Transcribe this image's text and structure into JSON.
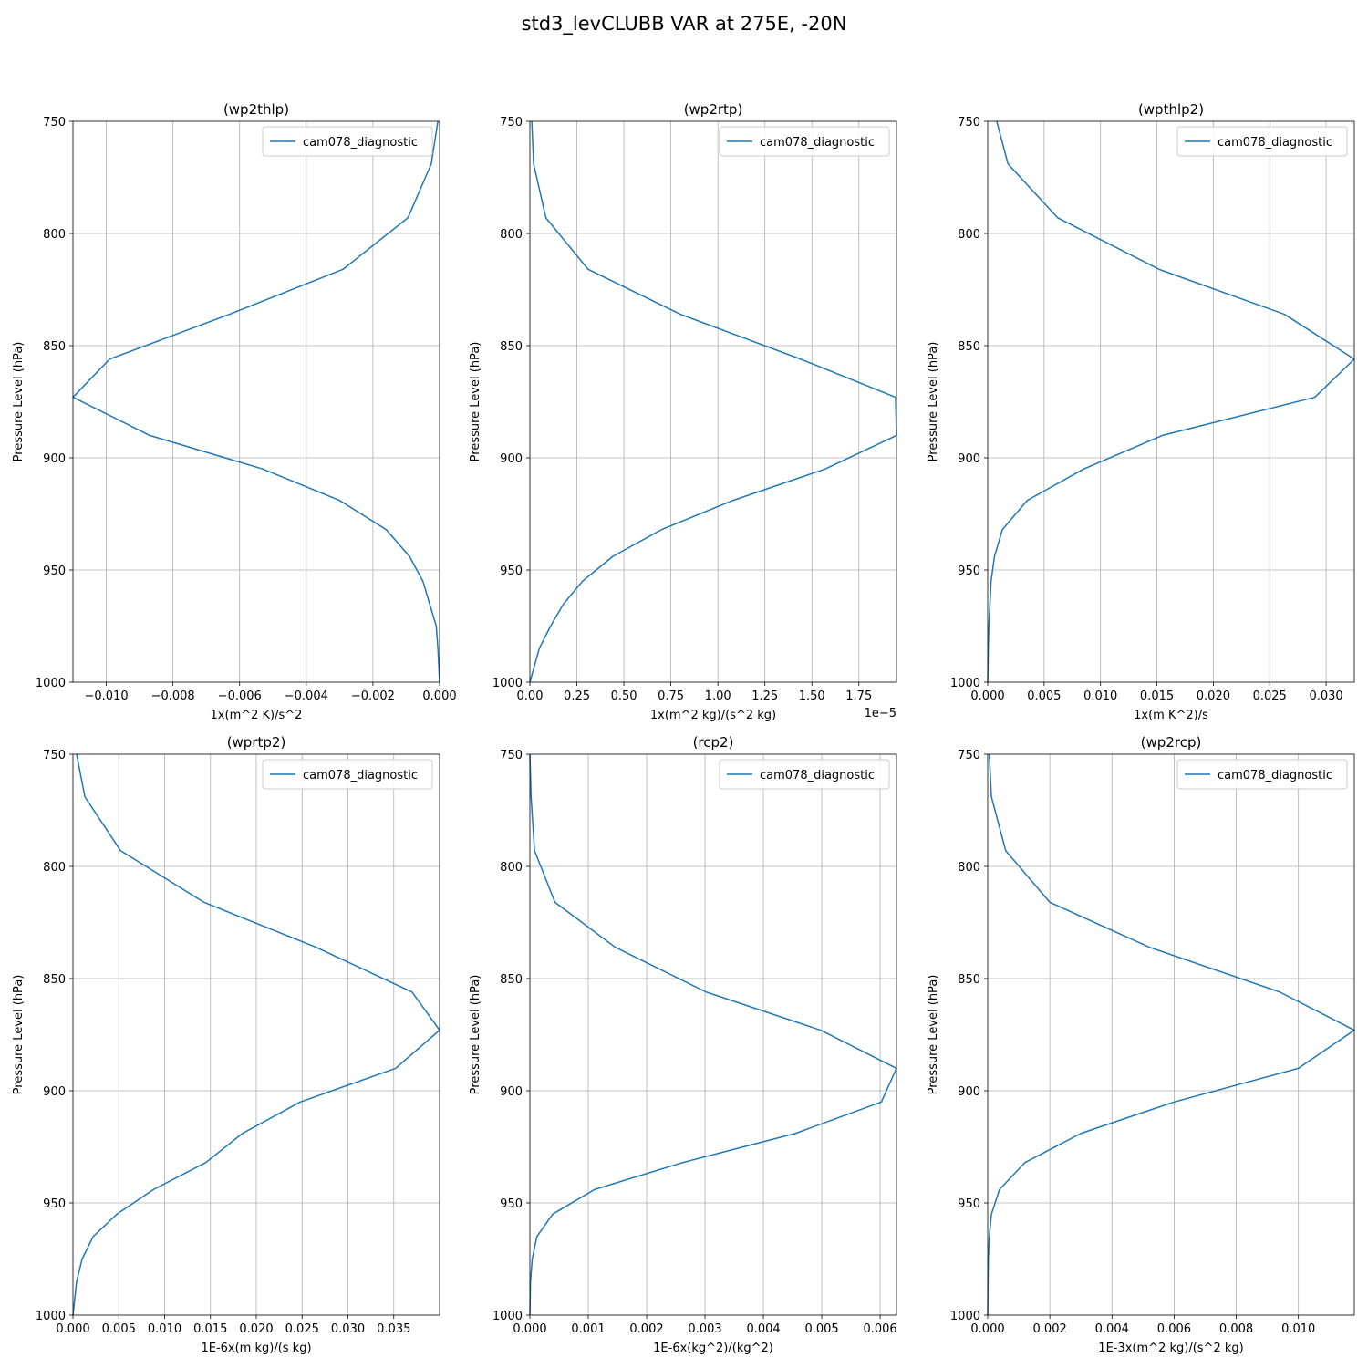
{
  "figure": {
    "title": "std3_levCLUBB VAR at 275E, -20N"
  },
  "chart_data": [
    {
      "type": "line",
      "title": "(wp2thlp)",
      "xlabel": "1x(m^2 K)/s^2",
      "ylabel": "Pressure Level (hPa)",
      "offset_text": "",
      "xlim": [
        -0.011,
        0.0
      ],
      "ylim": [
        1000,
        750
      ],
      "x_ticks": [
        -0.01,
        -0.008,
        -0.006,
        -0.004,
        -0.002,
        0.0
      ],
      "x_tick_labels": [
        "−0.010",
        "−0.008",
        "−0.006",
        "−0.004",
        "−0.002",
        "0.000"
      ],
      "y_ticks": [
        750,
        800,
        850,
        900,
        950,
        1000
      ],
      "y_tick_labels": [
        "750",
        "800",
        "850",
        "900",
        "950",
        "1000"
      ],
      "grid": true,
      "legend_position": "upper-right",
      "series": [
        {
          "name": "cam078_diagnostic",
          "color": "#1f77b4",
          "x": [
            -5e-05,
            -0.00025,
            -0.00095,
            -0.0029,
            -0.0063,
            -0.0099,
            -0.011,
            -0.0087,
            -0.0053,
            -0.003,
            -0.0016,
            -0.0009,
            -0.0005,
            -0.0003,
            -0.0001,
            -5e-05,
            0.0
          ],
          "y": [
            750,
            769,
            793,
            816,
            836,
            856,
            873,
            890,
            905,
            919,
            932,
            944,
            955,
            965,
            975,
            985,
            1000
          ]
        }
      ]
    },
    {
      "type": "line",
      "title": "(wp2rtp)",
      "xlabel": "1x(m^2 kg)/(s^2 kg)",
      "ylabel": "Pressure Level (hPa)",
      "offset_text": "1e−5",
      "xlim": [
        0.0,
        1.95e-05
      ],
      "ylim": [
        1000,
        750
      ],
      "x_ticks": [
        0.0,
        2.5e-06,
        5e-06,
        7.5e-06,
        1e-05,
        1.25e-05,
        1.5e-05,
        1.75e-05
      ],
      "x_tick_labels": [
        "0.00",
        "0.25",
        "0.50",
        "0.75",
        "1.00",
        "1.25",
        "1.50",
        "1.75"
      ],
      "y_ticks": [
        750,
        800,
        850,
        900,
        950,
        1000
      ],
      "y_tick_labels": [
        "750",
        "800",
        "850",
        "900",
        "950",
        "1000"
      ],
      "grid": true,
      "legend_position": "upper-right",
      "series": [
        {
          "name": "cam078_diagnostic",
          "color": "#1f77b4",
          "x": [
            1e-07,
            2e-07,
            8.5e-07,
            3.1e-06,
            8e-06,
            1.44e-05,
            1.945e-05,
            1.95e-05,
            1.57e-05,
            1.08e-05,
            7e-06,
            4.4e-06,
            2.8e-06,
            1.8e-06,
            1.1e-06,
            5e-07,
            0.0
          ],
          "y": [
            750,
            769,
            793,
            816,
            836,
            856,
            873,
            890,
            905,
            919,
            932,
            944,
            955,
            965,
            975,
            985,
            1000
          ]
        }
      ]
    },
    {
      "type": "line",
      "title": "(wpthlp2)",
      "xlabel": "1x(m K^2)/s",
      "ylabel": "Pressure Level (hPa)",
      "offset_text": "",
      "xlim": [
        0.0,
        0.0325
      ],
      "ylim": [
        1000,
        750
      ],
      "x_ticks": [
        0.0,
        0.005,
        0.01,
        0.015,
        0.02,
        0.025,
        0.03
      ],
      "x_tick_labels": [
        "0.000",
        "0.005",
        "0.010",
        "0.015",
        "0.020",
        "0.025",
        "0.030"
      ],
      "y_ticks": [
        750,
        800,
        850,
        900,
        950,
        1000
      ],
      "y_tick_labels": [
        "750",
        "800",
        "850",
        "900",
        "950",
        "1000"
      ],
      "grid": true,
      "legend_position": "upper-right",
      "series": [
        {
          "name": "cam078_diagnostic",
          "color": "#1f77b4",
          "x": [
            0.0008,
            0.0018,
            0.0062,
            0.0152,
            0.0263,
            0.0325,
            0.029,
            0.0155,
            0.0085,
            0.0035,
            0.0013,
            0.0006,
            0.0003,
            0.0002,
            0.0001,
            5e-05,
            0.0
          ],
          "y": [
            750,
            769,
            793,
            816,
            836,
            856,
            873,
            890,
            905,
            919,
            932,
            944,
            955,
            965,
            975,
            985,
            1000
          ]
        }
      ]
    },
    {
      "type": "line",
      "title": "(wprtp2)",
      "xlabel": "1E-6x(m kg)/(s kg)",
      "ylabel": "Pressure Level (hPa)",
      "offset_text": "",
      "xlim": [
        0.0,
        0.04
      ],
      "ylim": [
        1000,
        750
      ],
      "x_ticks": [
        0.0,
        0.005,
        0.01,
        0.015,
        0.02,
        0.025,
        0.03,
        0.035
      ],
      "x_tick_labels": [
        "0.000",
        "0.005",
        "0.010",
        "0.015",
        "0.020",
        "0.025",
        "0.030",
        "0.035"
      ],
      "y_ticks": [
        750,
        800,
        850,
        900,
        950,
        1000
      ],
      "y_tick_labels": [
        "750",
        "800",
        "850",
        "900",
        "950",
        "1000"
      ],
      "grid": true,
      "legend_position": "upper-right",
      "series": [
        {
          "name": "cam078_diagnostic",
          "color": "#1f77b4",
          "x": [
            0.0004,
            0.0013,
            0.0052,
            0.0143,
            0.0265,
            0.037,
            0.04,
            0.0352,
            0.0248,
            0.0185,
            0.0145,
            0.0088,
            0.0048,
            0.0022,
            0.001,
            0.0004,
            0.0
          ],
          "y": [
            750,
            769,
            793,
            816,
            836,
            856,
            873,
            890,
            905,
            919,
            932,
            944,
            955,
            965,
            975,
            985,
            1000
          ]
        }
      ]
    },
    {
      "type": "line",
      "title": "(rcp2)",
      "xlabel": "1E-6x(kg^2)/(kg^2)",
      "ylabel": "Pressure Level (hPa)",
      "offset_text": "",
      "xlim": [
        0.0,
        0.00628
      ],
      "ylim": [
        1000,
        750
      ],
      "x_ticks": [
        0.0,
        0.001,
        0.002,
        0.003,
        0.004,
        0.005,
        0.006
      ],
      "x_tick_labels": [
        "0.000",
        "0.001",
        "0.002",
        "0.003",
        "0.004",
        "0.005",
        "0.006"
      ],
      "y_ticks": [
        750,
        800,
        850,
        900,
        950,
        1000
      ],
      "y_tick_labels": [
        "750",
        "800",
        "850",
        "900",
        "950",
        "1000"
      ],
      "grid": true,
      "legend_position": "upper-right",
      "series": [
        {
          "name": "cam078_diagnostic",
          "color": "#1f77b4",
          "x": [
            0.0,
            2e-05,
            8e-05,
            0.00043,
            0.00146,
            0.00302,
            0.00498,
            0.00628,
            0.00602,
            0.00455,
            0.00262,
            0.00111,
            0.00039,
            0.00012,
            4e-05,
            1e-05,
            0.0
          ],
          "y": [
            750,
            769,
            793,
            816,
            836,
            856,
            873,
            890,
            905,
            919,
            932,
            944,
            955,
            965,
            975,
            985,
            1000
          ]
        }
      ]
    },
    {
      "type": "line",
      "title": "(wp2rcp)",
      "xlabel": "1E-3x(m^2 kg)/(s^2 kg)",
      "ylabel": "Pressure Level (hPa)",
      "offset_text": "",
      "xlim": [
        0.0,
        0.0118
      ],
      "ylim": [
        1000,
        750
      ],
      "x_ticks": [
        0.0,
        0.002,
        0.004,
        0.006,
        0.008,
        0.01
      ],
      "x_tick_labels": [
        "0.000",
        "0.002",
        "0.004",
        "0.006",
        "0.008",
        "0.010"
      ],
      "y_ticks": [
        750,
        800,
        850,
        900,
        950,
        1000
      ],
      "y_tick_labels": [
        "750",
        "800",
        "850",
        "900",
        "950",
        "1000"
      ],
      "grid": true,
      "legend_position": "upper-right",
      "series": [
        {
          "name": "cam078_diagnostic",
          "color": "#1f77b4",
          "x": [
            5e-05,
            0.00012,
            0.00058,
            0.002,
            0.0052,
            0.0094,
            0.0118,
            0.01,
            0.006,
            0.003,
            0.0012,
            0.00038,
            0.00012,
            5e-05,
            2e-05,
            1e-05,
            0.0
          ],
          "y": [
            750,
            769,
            793,
            816,
            836,
            856,
            873,
            890,
            905,
            919,
            932,
            944,
            955,
            965,
            975,
            985,
            1000
          ]
        }
      ]
    }
  ]
}
